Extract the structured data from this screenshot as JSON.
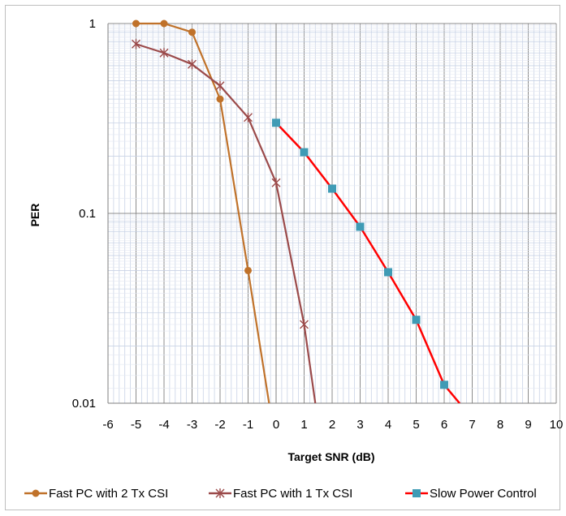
{
  "chart_data": {
    "type": "line",
    "title": "",
    "xlabel": "Target SNR (dB)",
    "ylabel": "PER",
    "xlim": [
      -6,
      10
    ],
    "ylim": [
      0.01,
      1
    ],
    "yscale": "log",
    "grid": true,
    "legend_position": "bottom",
    "x_ticks": [
      "-6",
      "-5",
      "-4",
      "-3",
      "-2",
      "-1",
      "0",
      "1",
      "2",
      "3",
      "4",
      "5",
      "6",
      "7",
      "8",
      "9",
      "10"
    ],
    "y_ticks": [
      {
        "value": 1,
        "label": "1"
      },
      {
        "value": 0.1,
        "label": "0.1"
      },
      {
        "value": 0.01,
        "label": "0.01"
      }
    ],
    "series": [
      {
        "name": "Fast PC with 2 Tx CSI",
        "color": "#c0722a",
        "marker": "circle",
        "x": [
          -5,
          -4,
          -3,
          -2,
          -1,
          -0.25
        ],
        "y": [
          1.0,
          1.0,
          0.9,
          0.4,
          0.05,
          0.01
        ]
      },
      {
        "name": "Fast PC with 1 Tx CSI",
        "color": "#9b4a4a",
        "marker": "star",
        "x": [
          -5,
          -4,
          -3,
          -2,
          -1,
          0,
          1,
          1.4
        ],
        "y": [
          0.78,
          0.7,
          0.61,
          0.47,
          0.32,
          0.145,
          0.026,
          0.01
        ]
      },
      {
        "name": "Slow Power Control",
        "color": "#ff0000",
        "marker_color": "#3f9bb5",
        "marker": "square",
        "x": [
          0,
          1,
          2,
          3,
          4,
          5,
          6,
          6.55
        ],
        "y": [
          0.3,
          0.21,
          0.135,
          0.085,
          0.049,
          0.0275,
          0.0125,
          0.01
        ]
      }
    ]
  }
}
